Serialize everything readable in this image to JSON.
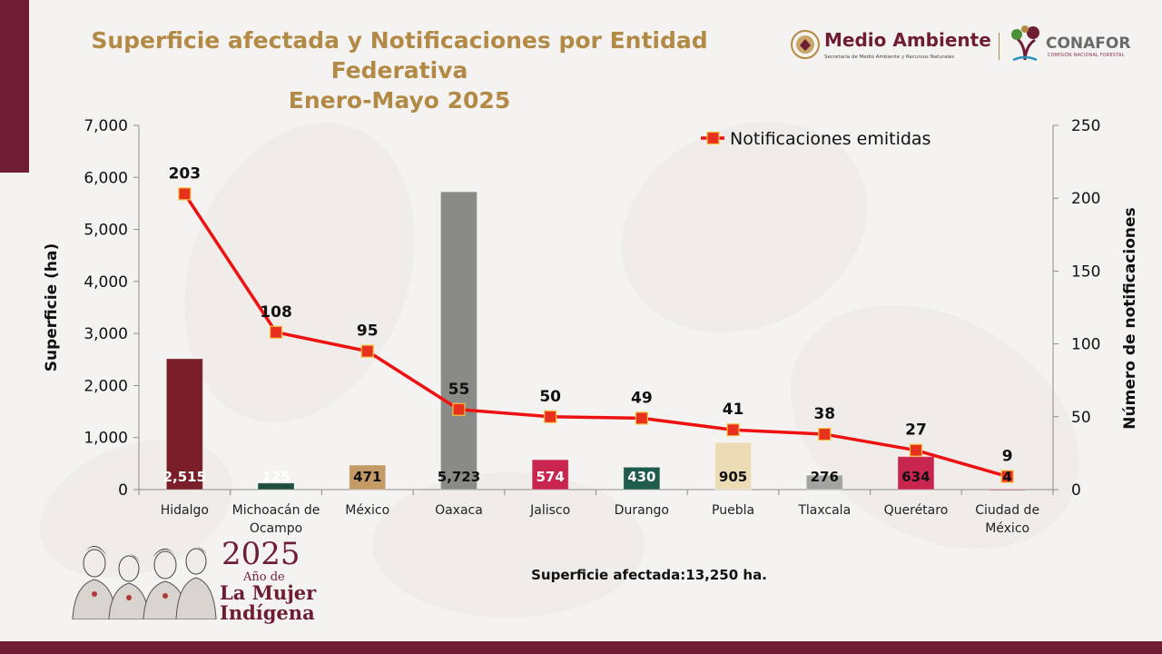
{
  "header": {
    "title_line1": "Superficie afectada y Notificaciones por Entidad Federativa",
    "title_line2": "Enero-Mayo 2025"
  },
  "logos": {
    "medio_ambiente": "Medio Ambiente",
    "medio_ambiente_sub": "Secretaría de Medio Ambiente y Recursos Naturales",
    "conafor": "CONAFOR",
    "conafor_sub": "COMISIÓN NACIONAL FORESTAL"
  },
  "footer": {
    "year": "2025",
    "year_sub": "Año de",
    "year_line2": "La Mujer",
    "year_line3": "Indígena",
    "summary": "Superficie afectada:13,250 ha."
  },
  "colors": {
    "brand": "#6e1d33",
    "gold": "#b38a45",
    "line": "#ee1111",
    "marker": "#e8301f"
  },
  "chart_data": {
    "type": "bar",
    "categories": [
      "Hidalgo",
      "Michoacán de Ocampo",
      "México",
      "Oaxaca",
      "Jalisco",
      "Durango",
      "Puebla",
      "Tlaxcala",
      "Querétaro",
      "Ciudad de México"
    ],
    "category_lines": [
      [
        "Hidalgo"
      ],
      [
        "Michoacán de",
        "Ocampo"
      ],
      [
        "México"
      ],
      [
        "Oaxaca"
      ],
      [
        "Jalisco"
      ],
      [
        "Durango"
      ],
      [
        "Puebla"
      ],
      [
        "Tlaxcala"
      ],
      [
        "Querétaro"
      ],
      [
        "Ciudad de",
        "México"
      ]
    ],
    "series": [
      {
        "name": "",
        "axis": "left",
        "values": [
          2515,
          125,
          471,
          5723,
          574,
          430,
          905,
          276,
          634,
          4
        ],
        "labels": [
          "2,515",
          "125",
          "471",
          "5,723",
          "574",
          "430",
          "905",
          "276",
          "634",
          "4"
        ],
        "colors": [
          "#7a1e29",
          "#1f4d3d",
          "#c49a66",
          "#8a8a88",
          "#c8264e",
          "#1f5c4c",
          "#ecdcb6",
          "#a3a3a0",
          "#c8264e",
          "#7a1e29"
        ],
        "label_colors": [
          "#ffffff",
          "#ffffff",
          "#111111",
          "#111111",
          "#ffffff",
          "#ffffff",
          "#111111",
          "#111111",
          "#111111",
          "#111111"
        ]
      },
      {
        "name": "Notificaciones emitidas",
        "type": "line",
        "axis": "right",
        "values": [
          203,
          108,
          95,
          55,
          50,
          49,
          41,
          38,
          27,
          9
        ]
      }
    ],
    "ylabel": "Superficie (ha)",
    "y2label": "Número de notificaciones",
    "ylim": [
      0,
      7000
    ],
    "yticks": [
      0,
      1000,
      2000,
      3000,
      4000,
      5000,
      6000,
      7000
    ],
    "ytick_labels": [
      "0",
      "1,000",
      "2,000",
      "3,000",
      "4,000",
      "5,000",
      "6,000",
      "7,000"
    ],
    "y2lim": [
      0,
      250
    ],
    "y2ticks": [
      0,
      50,
      100,
      150,
      200,
      250
    ],
    "y2tick_labels": [
      "0",
      "50",
      "100",
      "150",
      "200",
      "250"
    ],
    "legend": "top-right",
    "grid": false
  }
}
